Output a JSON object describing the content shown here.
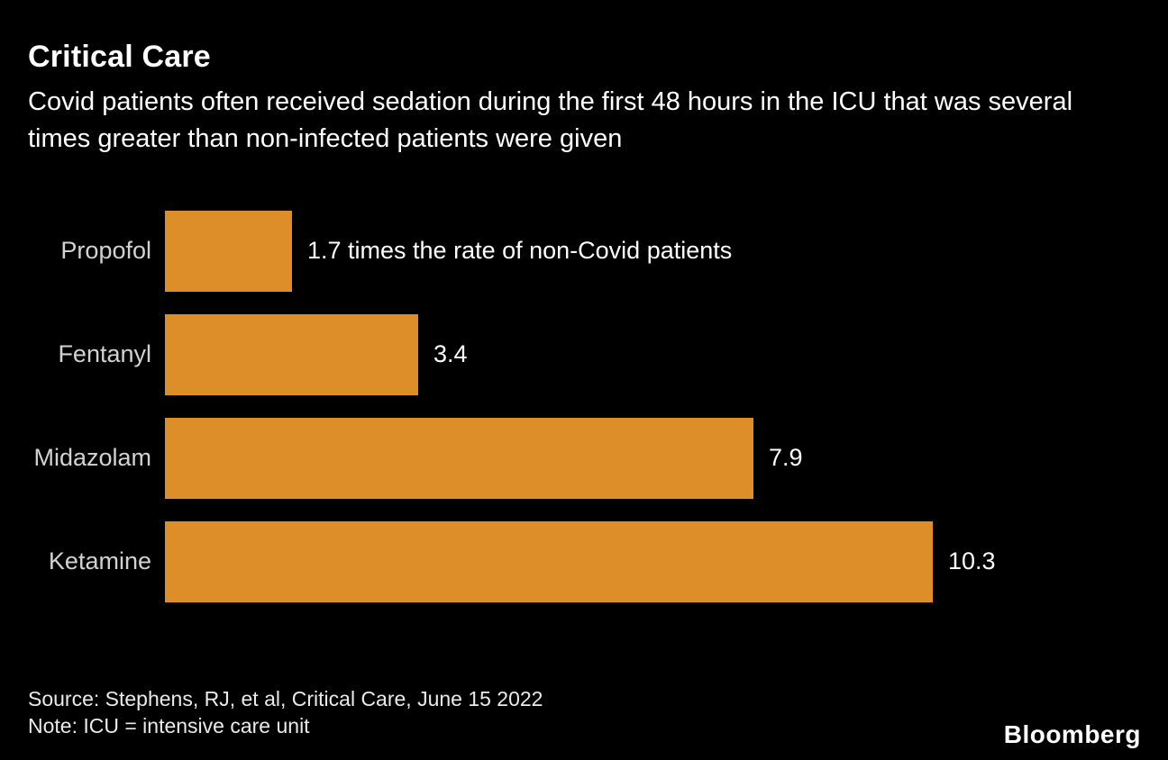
{
  "header": {
    "title": "Critical Care",
    "subtitle": "Covid patients often received sedation during the first 48 hours in the ICU that was several times greater than non-infected patients were given"
  },
  "chart_data": {
    "type": "bar",
    "orientation": "horizontal",
    "title": "Critical Care",
    "subtitle": "Covid patients often received sedation during the first 48 hours in the ICU that was several times greater than non-infected patients were given",
    "categories": [
      "Propofol",
      "Fentanyl",
      "Midazolam",
      "Ketamine"
    ],
    "values": [
      1.7,
      3.4,
      7.9,
      10.3
    ],
    "value_labels": [
      "1.7 times the rate of non-Covid patients",
      "3.4",
      "7.9",
      "10.3"
    ],
    "unit": "times the rate of non-Covid patients",
    "xlim": [
      0,
      10.3
    ],
    "bar_color": "#DD8E29",
    "background_color": "#000000",
    "grid": false,
    "legend": false
  },
  "footer": {
    "source": "Source: Stephens, RJ, et al, Critical Care, June 15 2022",
    "note": "Note: ICU = intensive care unit",
    "brand": "Bloomberg"
  }
}
